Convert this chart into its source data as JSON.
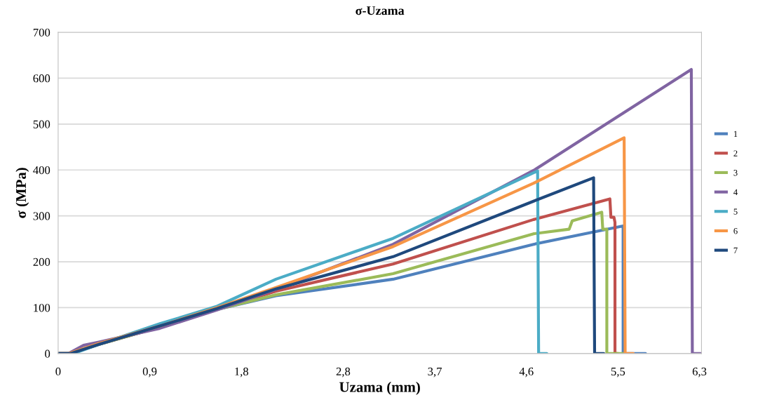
{
  "chart_data": {
    "type": "line",
    "title": "σ-Uzama",
    "xlabel": "Uzama (mm)",
    "ylabel": "σ (MPa)",
    "xlim": [
      0,
      6.32
    ],
    "ylim": [
      0,
      700
    ],
    "xticks": [
      0,
      {
        "value": 0.9,
        "label": "0,9"
      },
      {
        "value": 1.8,
        "label": "1,8"
      },
      {
        "value": 2.8,
        "label": "2,8"
      },
      {
        "value": 3.7,
        "label": "3,7"
      },
      {
        "value": 4.6,
        "label": "4,6"
      },
      {
        "value": 5.5,
        "label": "5,5"
      },
      {
        "value": 6.3,
        "label": "6,3"
      }
    ],
    "yticks": [
      0,
      100,
      200,
      300,
      400,
      500,
      600,
      700
    ],
    "grid": "y",
    "legend": "right",
    "marker": "none",
    "line_style": "solid",
    "series": [
      {
        "name": "1",
        "color": "#4f81bd",
        "x": [
          0,
          0.12,
          0.4,
          1.0,
          1.56,
          2.14,
          3.29,
          4.67,
          5.55,
          5.55,
          5.77
        ],
        "values": [
          0,
          0,
          20,
          58,
          96,
          126,
          162,
          238,
          278,
          0,
          0
        ]
      },
      {
        "name": "2",
        "color": "#c0504d",
        "x": [
          0,
          0.12,
          0.4,
          1.0,
          1.56,
          2.14,
          3.29,
          4.67,
          5.42,
          5.43,
          5.46,
          5.47,
          5.47,
          5.5
        ],
        "values": [
          0,
          0,
          20,
          58,
          97,
          136,
          195,
          292,
          337,
          297,
          297,
          286,
          0,
          0
        ]
      },
      {
        "name": "3",
        "color": "#9bbb59",
        "x": [
          0,
          0.12,
          0.4,
          1.0,
          1.56,
          2.14,
          3.29,
          4.67,
          5.02,
          5.05,
          5.34,
          5.35,
          5.39,
          5.39,
          5.55
        ],
        "values": [
          0,
          0,
          20,
          58,
          96,
          128,
          174,
          261,
          271,
          289,
          308,
          271,
          271,
          0,
          0
        ]
      },
      {
        "name": "4",
        "color": "#8064a2",
        "x": [
          0,
          0.1,
          0.25,
          0.4,
          1.0,
          1.56,
          2.14,
          3.29,
          4.67,
          6.22,
          6.23,
          6.31
        ],
        "values": [
          0,
          0,
          18,
          25,
          55,
          95,
          140,
          238,
          399,
          619,
          0,
          0
        ]
      },
      {
        "name": "5",
        "color": "#4bacc6",
        "x": [
          0,
          0.15,
          0.4,
          1.0,
          1.56,
          2.14,
          3.29,
          4.71,
          4.72,
          4.8
        ],
        "values": [
          0,
          0,
          20,
          65,
          103,
          162,
          251,
          398,
          0,
          0
        ]
      },
      {
        "name": "6",
        "color": "#f79646",
        "x": [
          0,
          0.1,
          0.4,
          1.0,
          1.56,
          2.14,
          3.29,
          4.67,
          5.56,
          5.57,
          5.65
        ],
        "values": [
          0,
          0,
          22,
          60,
          100,
          144,
          233,
          371,
          470,
          0,
          0
        ]
      },
      {
        "name": "7",
        "color": "#1f497d",
        "x": [
          0,
          0.12,
          0.4,
          1.0,
          1.56,
          2.14,
          3.29,
          4.67,
          5.26,
          5.27,
          5.36
        ],
        "values": [
          0,
          0,
          20,
          60,
          98,
          141,
          211,
          332,
          383,
          0,
          0
        ]
      }
    ]
  }
}
